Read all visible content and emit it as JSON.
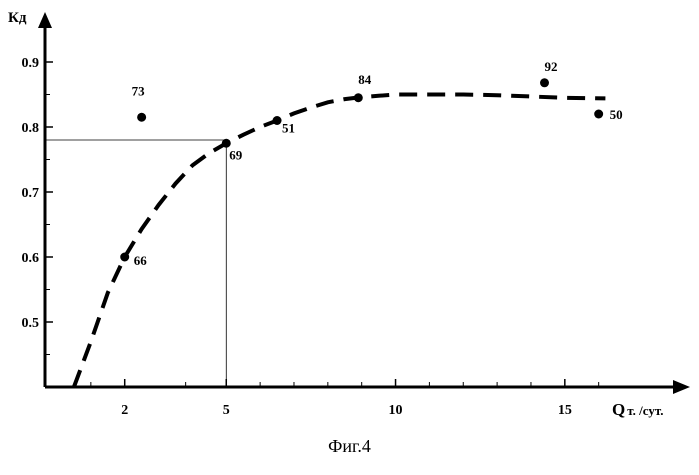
{
  "chart_data": {
    "type": "scatter",
    "ylabel": "Кд",
    "xlabel": "Q",
    "xlabel_unit": "т. /сут.",
    "caption": "Фиг.4",
    "xlim": [
      0,
      17.6
    ],
    "ylim": [
      0.4,
      0.95
    ],
    "x_ticks": [
      2,
      5,
      10,
      15
    ],
    "y_ticks": [
      0.5,
      0.6,
      0.7,
      0.8,
      0.9
    ],
    "y_tick_labels": [
      "0.5",
      "0.6",
      "0.7",
      "0.8",
      "0.9"
    ],
    "points": [
      {
        "label": "73",
        "x": 2.5,
        "y": 0.815
      },
      {
        "label": "66",
        "x": 2.0,
        "y": 0.6
      },
      {
        "label": "69",
        "x": 5.0,
        "y": 0.775
      },
      {
        "label": "51",
        "x": 6.5,
        "y": 0.81
      },
      {
        "label": "84",
        "x": 8.9,
        "y": 0.845
      },
      {
        "label": "92",
        "x": 14.4,
        "y": 0.868
      },
      {
        "label": "50",
        "x": 16.0,
        "y": 0.82
      }
    ],
    "trend_curve": {
      "style": "dashed",
      "x": [
        0.5,
        1.0,
        1.5,
        2.0,
        2.5,
        3.0,
        3.5,
        4.0,
        4.5,
        5.0,
        5.5,
        6.0,
        6.5,
        7.0,
        7.5,
        8.0,
        8.5,
        9.0,
        9.5,
        10.0,
        11.0,
        12.0,
        13.0,
        14.0,
        15.0,
        16.2
      ],
      "y": [
        0.4,
        0.47,
        0.545,
        0.6,
        0.643,
        0.68,
        0.713,
        0.741,
        0.76,
        0.775,
        0.788,
        0.8,
        0.81,
        0.821,
        0.83,
        0.838,
        0.843,
        0.846,
        0.848,
        0.85,
        0.85,
        0.85,
        0.849,
        0.847,
        0.845,
        0.844
      ]
    },
    "reference_lines": {
      "x": 5.0,
      "y": 0.78,
      "style": "thin"
    },
    "grid": false,
    "legend": "none"
  }
}
